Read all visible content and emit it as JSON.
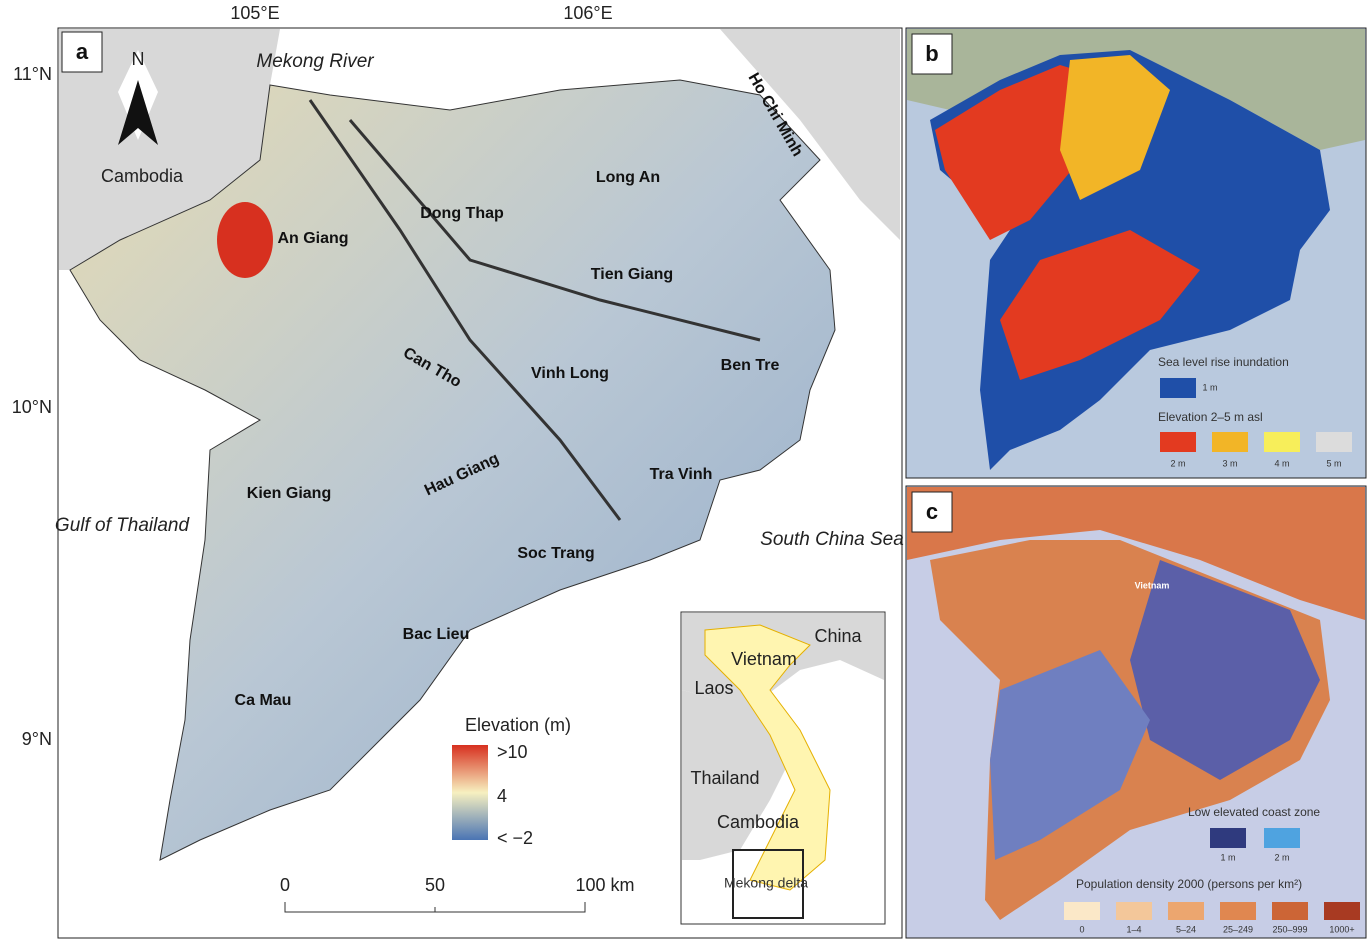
{
  "panel_a": {
    "label": "a",
    "lon_labels": [
      "105°E",
      "106°E"
    ],
    "lat_labels": [
      "11°N",
      "10°N",
      "9°N"
    ],
    "north": "N",
    "places": [
      "Mekong River",
      "Cambodia",
      "Ho Chi Minh",
      "Gulf of Thailand",
      "South China Sea"
    ],
    "provinces": [
      "An Giang",
      "Dong Thap",
      "Long An",
      "Tien Giang",
      "Can Tho",
      "Vinh Long",
      "Ben Tre",
      "Kien Giang",
      "Hau Giang",
      "Tra Vinh",
      "Soc Trang",
      "Bac Lieu",
      "Ca Mau"
    ],
    "legend": {
      "title": "Elevation (m)",
      "labels": [
        ">10",
        "4",
        "< −2"
      ]
    },
    "scale_bar": [
      "0",
      "50",
      "100 km"
    ],
    "inset": [
      "China",
      "Vietnam",
      "Laos",
      "Thailand",
      "Cambodia",
      "Mekong delta"
    ]
  },
  "panel_b": {
    "label": "b",
    "legend": {
      "title1": "Sea level rise inundation",
      "items1": [
        "1 m"
      ],
      "title2": "Elevation 2–5 m asl",
      "items2": [
        "2 m",
        "3 m",
        "4 m",
        "5 m"
      ]
    }
  },
  "panel_c": {
    "label": "c",
    "country": "Vietnam",
    "legend": {
      "title1": "Low elevated coast zone",
      "items1": [
        "1 m",
        "2 m"
      ],
      "title2": "Population density 2000 (persons per km²)",
      "items2": [
        "0",
        "1–4",
        "5–24",
        "25–249",
        "250–999",
        "1000+"
      ]
    }
  }
}
